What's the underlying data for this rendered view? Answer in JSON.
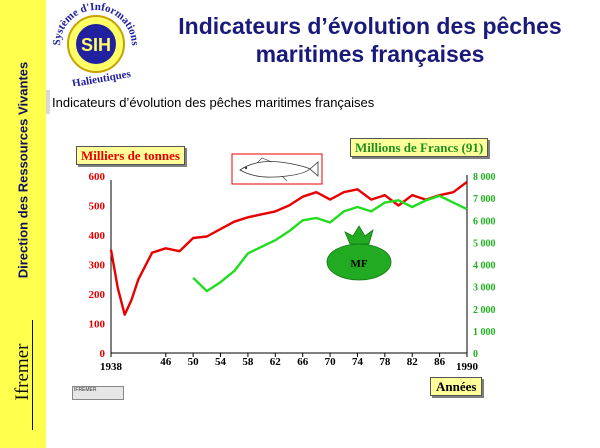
{
  "sidebar": {
    "vertical_text": "Direction des Ressources Vivantes",
    "brand": "Ifremer"
  },
  "logo": {
    "top_text": "Système d'Informations",
    "center_text": "SIH",
    "bottom_text": "Halieutiques"
  },
  "title": "Indicateurs d’évolution des pêches maritimes françaises",
  "subtitle": "Indicateurs d’évolution des pêches maritimes françaises",
  "mf_label": "MF",
  "tiny_logo_text": "IFREMER",
  "chart_data": {
    "type": "line",
    "x": [
      1938,
      1939,
      1940,
      1941,
      1942,
      1944,
      1946,
      1948,
      1950,
      1952,
      1954,
      1956,
      1958,
      1960,
      1962,
      1964,
      1966,
      1968,
      1970,
      1972,
      1974,
      1976,
      1978,
      1980,
      1982,
      1984,
      1986,
      1988,
      1990
    ],
    "x_tick_labels": [
      "1938",
      "46",
      "50",
      "54",
      "58",
      "62",
      "66",
      "70",
      "74",
      "78",
      "82",
      "86",
      "1990"
    ],
    "xlabel": "Années",
    "y_left_label": "Milliers de tonnes",
    "y_left_ticks": [
      "0",
      "100",
      "200",
      "300",
      "400",
      "500",
      "600"
    ],
    "y_left_range": [
      0,
      600
    ],
    "y_right_label": "Millions de Francs (91)",
    "y_right_ticks": [
      "0",
      "1 000",
      "2 000",
      "3 000",
      "4 000",
      "5 000",
      "6 000",
      "7 000",
      "8 000"
    ],
    "y_right_range": [
      0,
      8000
    ],
    "series": [
      {
        "axis": "left",
        "color": "#e80000",
        "values": [
          350,
          220,
          130,
          180,
          250,
          340,
          355,
          345,
          390,
          395,
          420,
          445,
          460,
          470,
          480,
          500,
          530,
          545,
          520,
          545,
          555,
          520,
          535,
          500,
          535,
          520,
          535,
          545,
          580
        ]
      },
      {
        "axis": "right",
        "color": "#20dd20",
        "values": [
          null,
          null,
          null,
          null,
          null,
          null,
          null,
          null,
          3400,
          2800,
          3200,
          3700,
          4500,
          4800,
          5100,
          5500,
          6000,
          6100,
          5900,
          6400,
          6600,
          6400,
          6800,
          6900,
          6600,
          6900,
          7100,
          6800,
          6500
        ]
      }
    ],
    "grid": false
  }
}
